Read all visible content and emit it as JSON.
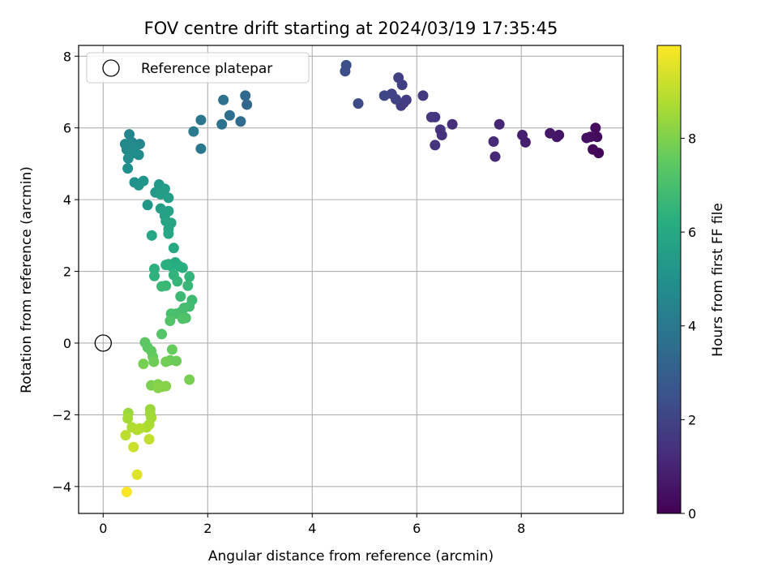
{
  "chart_data": {
    "type": "scatter",
    "title": "FOV centre drift starting at 2024/03/19 17:35:45",
    "xlabel": "Angular distance from reference (arcmin)",
    "ylabel": "Rotation from reference (arcmin)",
    "xlim": [
      -0.47,
      9.95
    ],
    "ylim": [
      -4.75,
      8.3
    ],
    "xticks": [
      0,
      2,
      4,
      6,
      8
    ],
    "xtick_labels": [
      "0",
      "2",
      "4",
      "6",
      "8"
    ],
    "yticks": [
      -4,
      -2,
      0,
      2,
      4,
      6,
      8
    ],
    "ytick_labels": [
      "−4",
      "−2",
      "0",
      "2",
      "4",
      "6",
      "8"
    ],
    "grid": true,
    "legend": {
      "placement": "upper-left",
      "entries": [
        {
          "label": "Reference platepar",
          "marker": "hollow-circle"
        }
      ]
    },
    "reference_point": {
      "x": 0,
      "y": 0
    },
    "colorbar": {
      "label": "Hours from first FF file",
      "colormap": "viridis",
      "range": [
        0,
        9.98
      ],
      "ticks": [
        0,
        2,
        4,
        6,
        8
      ],
      "tick_labels": [
        "0",
        "2",
        "4",
        "6",
        "8"
      ]
    },
    "points": [
      {
        "x": 9.48,
        "y": 5.3,
        "t": 0.15
      },
      {
        "x": 9.37,
        "y": 5.4,
        "t": 0.2
      },
      {
        "x": 9.45,
        "y": 5.75,
        "t": 0.25
      },
      {
        "x": 9.42,
        "y": 6.0,
        "t": 0.3
      },
      {
        "x": 9.32,
        "y": 5.75,
        "t": 0.35
      },
      {
        "x": 9.25,
        "y": 5.72,
        "t": 0.4
      },
      {
        "x": 8.72,
        "y": 5.8,
        "t": 0.55
      },
      {
        "x": 8.68,
        "y": 5.75,
        "t": 0.6
      },
      {
        "x": 8.55,
        "y": 5.85,
        "t": 0.65
      },
      {
        "x": 8.08,
        "y": 5.6,
        "t": 0.85
      },
      {
        "x": 8.02,
        "y": 5.8,
        "t": 0.9
      },
      {
        "x": 7.58,
        "y": 6.1,
        "t": 1.05
      },
      {
        "x": 7.5,
        "y": 5.2,
        "t": 1.1
      },
      {
        "x": 7.47,
        "y": 5.62,
        "t": 1.15
      },
      {
        "x": 6.68,
        "y": 6.1,
        "t": 1.35
      },
      {
        "x": 6.48,
        "y": 5.8,
        "t": 1.4
      },
      {
        "x": 6.45,
        "y": 5.95,
        "t": 1.45
      },
      {
        "x": 6.35,
        "y": 5.52,
        "t": 1.5
      },
      {
        "x": 6.35,
        "y": 6.3,
        "t": 1.55
      },
      {
        "x": 6.28,
        "y": 6.3,
        "t": 1.6
      },
      {
        "x": 6.12,
        "y": 6.9,
        "t": 1.65
      },
      {
        "x": 5.8,
        "y": 6.78,
        "t": 1.75
      },
      {
        "x": 5.75,
        "y": 6.7,
        "t": 1.78
      },
      {
        "x": 5.7,
        "y": 6.62,
        "t": 1.8
      },
      {
        "x": 5.72,
        "y": 7.2,
        "t": 1.85
      },
      {
        "x": 5.65,
        "y": 7.4,
        "t": 1.9
      },
      {
        "x": 5.6,
        "y": 6.8,
        "t": 1.95
      },
      {
        "x": 5.52,
        "y": 6.95,
        "t": 2.0
      },
      {
        "x": 5.38,
        "y": 6.9,
        "t": 2.1
      },
      {
        "x": 4.88,
        "y": 6.68,
        "t": 2.25
      },
      {
        "x": 4.65,
        "y": 7.75,
        "t": 2.35
      },
      {
        "x": 4.63,
        "y": 7.58,
        "t": 2.4
      },
      {
        "x": 2.75,
        "y": 6.65,
        "t": 3.3
      },
      {
        "x": 2.72,
        "y": 6.9,
        "t": 3.4
      },
      {
        "x": 2.63,
        "y": 6.18,
        "t": 3.5
      },
      {
        "x": 2.42,
        "y": 6.35,
        "t": 3.6
      },
      {
        "x": 2.3,
        "y": 6.78,
        "t": 3.7
      },
      {
        "x": 2.27,
        "y": 6.1,
        "t": 3.8
      },
      {
        "x": 1.87,
        "y": 6.22,
        "t": 3.9
      },
      {
        "x": 1.87,
        "y": 5.42,
        "t": 4.0
      },
      {
        "x": 1.73,
        "y": 5.9,
        "t": 4.1
      },
      {
        "x": 0.5,
        "y": 5.82,
        "t": 4.5
      },
      {
        "x": 0.7,
        "y": 5.55,
        "t": 4.55
      },
      {
        "x": 0.55,
        "y": 5.6,
        "t": 4.6
      },
      {
        "x": 0.42,
        "y": 5.55,
        "t": 4.65
      },
      {
        "x": 0.45,
        "y": 5.4,
        "t": 4.7
      },
      {
        "x": 0.6,
        "y": 5.45,
        "t": 4.75
      },
      {
        "x": 0.68,
        "y": 5.25,
        "t": 4.8
      },
      {
        "x": 0.6,
        "y": 5.3,
        "t": 4.85
      },
      {
        "x": 0.48,
        "y": 5.15,
        "t": 4.9
      },
      {
        "x": 0.47,
        "y": 4.87,
        "t": 4.95
      },
      {
        "x": 0.6,
        "y": 4.48,
        "t": 5.05
      },
      {
        "x": 0.68,
        "y": 4.4,
        "t": 5.1
      },
      {
        "x": 0.77,
        "y": 4.52,
        "t": 5.15
      },
      {
        "x": 0.85,
        "y": 3.85,
        "t": 5.25
      },
      {
        "x": 1.0,
        "y": 4.2,
        "t": 5.3
      },
      {
        "x": 1.07,
        "y": 4.42,
        "t": 5.35
      },
      {
        "x": 1.12,
        "y": 4.25,
        "t": 5.4
      },
      {
        "x": 1.18,
        "y": 4.3,
        "t": 5.45
      },
      {
        "x": 1.1,
        "y": 4.15,
        "t": 5.5
      },
      {
        "x": 1.25,
        "y": 4.05,
        "t": 5.55
      },
      {
        "x": 1.1,
        "y": 3.75,
        "t": 5.6
      },
      {
        "x": 1.18,
        "y": 3.55,
        "t": 5.65
      },
      {
        "x": 1.25,
        "y": 3.68,
        "t": 5.7
      },
      {
        "x": 1.2,
        "y": 3.4,
        "t": 5.75
      },
      {
        "x": 1.3,
        "y": 3.35,
        "t": 5.8
      },
      {
        "x": 1.25,
        "y": 3.18,
        "t": 5.85
      },
      {
        "x": 1.25,
        "y": 3.05,
        "t": 5.9
      },
      {
        "x": 0.93,
        "y": 3.0,
        "t": 5.95
      },
      {
        "x": 1.35,
        "y": 2.65,
        "t": 6.0
      },
      {
        "x": 1.38,
        "y": 2.25,
        "t": 6.05
      },
      {
        "x": 1.45,
        "y": 2.15,
        "t": 6.1
      },
      {
        "x": 1.25,
        "y": 2.2,
        "t": 6.15
      },
      {
        "x": 1.3,
        "y": 2.15,
        "t": 6.2
      },
      {
        "x": 1.52,
        "y": 2.1,
        "t": 6.25
      },
      {
        "x": 1.2,
        "y": 2.18,
        "t": 6.3
      },
      {
        "x": 0.98,
        "y": 2.07,
        "t": 6.35
      },
      {
        "x": 0.98,
        "y": 1.87,
        "t": 6.4
      },
      {
        "x": 1.35,
        "y": 1.9,
        "t": 6.45
      },
      {
        "x": 1.65,
        "y": 1.85,
        "t": 6.5
      },
      {
        "x": 1.42,
        "y": 1.72,
        "t": 6.55
      },
      {
        "x": 1.62,
        "y": 1.6,
        "t": 6.6
      },
      {
        "x": 1.2,
        "y": 1.6,
        "t": 6.65
      },
      {
        "x": 1.12,
        "y": 1.58,
        "t": 6.7
      },
      {
        "x": 1.48,
        "y": 1.3,
        "t": 6.75
      },
      {
        "x": 1.7,
        "y": 1.2,
        "t": 6.8
      },
      {
        "x": 1.65,
        "y": 1.02,
        "t": 6.85
      },
      {
        "x": 1.55,
        "y": 0.98,
        "t": 6.9
      },
      {
        "x": 1.5,
        "y": 0.88,
        "t": 6.95
      },
      {
        "x": 1.4,
        "y": 0.82,
        "t": 7.0
      },
      {
        "x": 1.3,
        "y": 0.82,
        "t": 7.05
      },
      {
        "x": 1.58,
        "y": 0.7,
        "t": 7.1
      },
      {
        "x": 1.52,
        "y": 0.68,
        "t": 7.15
      },
      {
        "x": 1.28,
        "y": 0.62,
        "t": 7.2
      },
      {
        "x": 1.12,
        "y": 0.25,
        "t": 7.25
      },
      {
        "x": 0.8,
        "y": 0.02,
        "t": 7.4
      },
      {
        "x": 0.85,
        "y": -0.12,
        "t": 7.45
      },
      {
        "x": 0.92,
        "y": -0.22,
        "t": 7.5
      },
      {
        "x": 0.95,
        "y": -0.38,
        "t": 7.55
      },
      {
        "x": 1.32,
        "y": -0.18,
        "t": 7.6
      },
      {
        "x": 1.28,
        "y": -0.48,
        "t": 7.65
      },
      {
        "x": 1.4,
        "y": -0.5,
        "t": 7.7
      },
      {
        "x": 0.97,
        "y": -0.52,
        "t": 7.75
      },
      {
        "x": 1.2,
        "y": -0.52,
        "t": 7.8
      },
      {
        "x": 0.77,
        "y": -0.58,
        "t": 7.85
      },
      {
        "x": 1.65,
        "y": -1.02,
        "t": 7.9
      },
      {
        "x": 0.92,
        "y": -1.18,
        "t": 7.95
      },
      {
        "x": 1.05,
        "y": -1.15,
        "t": 8.0
      },
      {
        "x": 1.12,
        "y": -1.22,
        "t": 8.05
      },
      {
        "x": 1.2,
        "y": -1.2,
        "t": 8.1
      },
      {
        "x": 1.05,
        "y": -1.25,
        "t": 8.15
      },
      {
        "x": 0.9,
        "y": -1.85,
        "t": 8.4
      },
      {
        "x": 0.48,
        "y": -1.95,
        "t": 8.45
      },
      {
        "x": 0.9,
        "y": -1.97,
        "t": 8.5
      },
      {
        "x": 0.92,
        "y": -2.08,
        "t": 8.55
      },
      {
        "x": 0.47,
        "y": -2.1,
        "t": 8.6
      },
      {
        "x": 0.88,
        "y": -2.27,
        "t": 8.65
      },
      {
        "x": 0.83,
        "y": -2.35,
        "t": 8.7
      },
      {
        "x": 0.55,
        "y": -2.35,
        "t": 8.75
      },
      {
        "x": 0.65,
        "y": -2.42,
        "t": 8.8
      },
      {
        "x": 0.7,
        "y": -2.38,
        "t": 8.85
      },
      {
        "x": 0.43,
        "y": -2.57,
        "t": 8.95
      },
      {
        "x": 0.88,
        "y": -2.68,
        "t": 9.05
      },
      {
        "x": 0.58,
        "y": -2.9,
        "t": 9.2
      },
      {
        "x": 0.65,
        "y": -3.67,
        "t": 9.5
      },
      {
        "x": 0.45,
        "y": -4.15,
        "t": 9.9
      }
    ]
  }
}
